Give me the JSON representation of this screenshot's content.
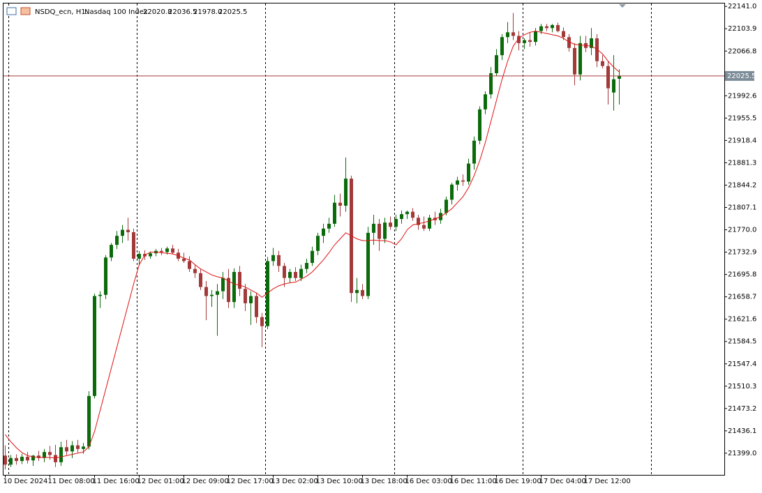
{
  "chart_data": {
    "type": "candlestick",
    "header": {
      "symbol": "NSDQ_ecn, H1:",
      "name": "Nasdaq 100 Index",
      "ohlc_text": [
        "22020.8",
        "22036.5",
        "21978.0",
        "22025.5"
      ]
    },
    "up_color": "#0b6b0b",
    "down_color": "#a33a3a",
    "ylim": [
      21363,
      22147
    ],
    "yticks": [
      {
        "value": 22141,
        "label": "22141.0"
      },
      22103.9,
      22066.8,
      21992.6,
      21955.5,
      21918.4,
      21881.3,
      21844.2,
      21807.1,
      {
        "value": 21770,
        "label": "21770.0"
      },
      21732.9,
      21695.8,
      21658.7,
      21621.6,
      21584.5,
      21547.4,
      21510.3,
      21473.2,
      21436.1,
      {
        "value": 21399,
        "label": "21399.0"
      }
    ],
    "current_price": 22025.5,
    "current_price_color": "#a33a3a",
    "categories": [
      "10 Dec 2024",
      null,
      null,
      null,
      null,
      null,
      null,
      null,
      "11 Dec 08:00",
      null,
      null,
      null,
      null,
      null,
      null,
      null,
      "11 Dec 16:00",
      null,
      null,
      null,
      null,
      null,
      null,
      null,
      "12 Dec 01:00",
      null,
      null,
      null,
      null,
      null,
      null,
      null,
      "12 Dec 09:00",
      null,
      null,
      null,
      null,
      null,
      null,
      null,
      "12 Dec 17:00",
      null,
      null,
      null,
      null,
      null,
      null,
      null,
      "13 Dec 02:00",
      null,
      null,
      null,
      null,
      null,
      null,
      null,
      "13 Dec 10:00",
      null,
      null,
      null,
      null,
      null,
      null,
      null,
      "13 Dec 18:00",
      null,
      null,
      null,
      null,
      null,
      null,
      null,
      "16 Dec 03:00",
      null,
      null,
      null,
      null,
      null,
      null,
      null,
      "16 Dec 11:00",
      null,
      null,
      null,
      null,
      null,
      null,
      null,
      "16 Dec 19:00",
      null,
      null,
      null,
      null,
      null,
      null,
      null,
      "17 Dec 04:00",
      null,
      null,
      null,
      null,
      null,
      null,
      null,
      "17 Dec 12:00",
      null,
      null,
      null,
      null,
      null,
      null
    ],
    "ohlc": [
      [
        21395,
        21412,
        21372,
        21380
      ],
      [
        21380,
        21396,
        21376,
        21391
      ],
      [
        21391,
        21397,
        21380,
        21386
      ],
      [
        21386,
        21398,
        21381,
        21393
      ],
      [
        21393,
        21401,
        21382,
        21387
      ],
      [
        21387,
        21396,
        21378,
        21395
      ],
      [
        21395,
        21403,
        21386,
        21391
      ],
      [
        21391,
        21406,
        21384,
        21401
      ],
      [
        21401,
        21411,
        21388,
        21396
      ],
      [
        21396,
        21413,
        21376,
        21384
      ],
      [
        21384,
        21418,
        21378,
        21409
      ],
      [
        21409,
        21421,
        21396,
        21402
      ],
      [
        21402,
        21419,
        21391,
        21412
      ],
      [
        21412,
        21421,
        21400,
        21406
      ],
      [
        21406,
        21416,
        21398,
        21410
      ],
      [
        21410,
        21502,
        21405,
        21494
      ],
      [
        21494,
        21664,
        21490,
        21660
      ],
      [
        21660,
        21668,
        21640,
        21662
      ],
      [
        21662,
        21728,
        21655,
        21724
      ],
      [
        21724,
        21748,
        21718,
        21745
      ],
      [
        21745,
        21768,
        21738,
        21760
      ],
      [
        21760,
        21778,
        21748,
        21770
      ],
      [
        21770,
        21790,
        21752,
        21766
      ],
      [
        21766,
        21772,
        21718,
        21722
      ],
      [
        21722,
        21735,
        21712,
        21730
      ],
      [
        21730,
        21736,
        21720,
        21726
      ],
      [
        21726,
        21734,
        21722,
        21731
      ],
      [
        21731,
        21738,
        21726,
        21735
      ],
      [
        21735,
        21740,
        21728,
        21733
      ],
      [
        21733,
        21742,
        21729,
        21739
      ],
      [
        21739,
        21745,
        21730,
        21732
      ],
      [
        21732,
        21738,
        21718,
        21722
      ],
      [
        21722,
        21732,
        21715,
        21718
      ],
      [
        21718,
        21726,
        21700,
        21705
      ],
      [
        21705,
        21712,
        21690,
        21698
      ],
      [
        21698,
        21704,
        21670,
        21675
      ],
      [
        21675,
        21685,
        21620,
        21660
      ],
      [
        21660,
        21670,
        21642,
        21662
      ],
      [
        21662,
        21680,
        21594,
        21668
      ],
      [
        21668,
        21700,
        21655,
        21690
      ],
      [
        21690,
        21705,
        21640,
        21650
      ],
      [
        21650,
        21706,
        21640,
        21700
      ],
      [
        21700,
        21710,
        21660,
        21672
      ],
      [
        21672,
        21680,
        21635,
        21648
      ],
      [
        21648,
        21668,
        21612,
        21660
      ],
      [
        21660,
        21665,
        21615,
        21625
      ],
      [
        21625,
        21632,
        21575,
        21610
      ],
      [
        21610,
        21725,
        21605,
        21718
      ],
      [
        21718,
        21740,
        21710,
        21728
      ],
      [
        21728,
        21735,
        21700,
        21710
      ],
      [
        21710,
        21715,
        21675,
        21690
      ],
      [
        21690,
        21705,
        21682,
        21700
      ],
      [
        21700,
        21708,
        21685,
        21690
      ],
      [
        21690,
        21712,
        21685,
        21705
      ],
      [
        21705,
        21722,
        21698,
        21715
      ],
      [
        21715,
        21742,
        21710,
        21735
      ],
      [
        21735,
        21765,
        21728,
        21760
      ],
      [
        21760,
        21780,
        21748,
        21772
      ],
      [
        21772,
        21790,
        21765,
        21780
      ],
      [
        21780,
        21828,
        21775,
        21815
      ],
      [
        21815,
        21830,
        21792,
        21810
      ],
      [
        21810,
        21890,
        21800,
        21855
      ],
      [
        21855,
        21860,
        21650,
        21665
      ],
      [
        21665,
        21690,
        21648,
        21670
      ],
      [
        21670,
        21680,
        21655,
        21660
      ],
      [
        21660,
        21775,
        21655,
        21765
      ],
      [
        21765,
        21795,
        21745,
        21780
      ],
      [
        21780,
        21788,
        21735,
        21755
      ],
      [
        21755,
        21790,
        21748,
        21782
      ],
      [
        21782,
        21792,
        21770,
        21775
      ],
      [
        21775,
        21795,
        21768,
        21788
      ],
      [
        21788,
        21802,
        21780,
        21796
      ],
      [
        21796,
        21802,
        21788,
        21800
      ],
      [
        21800,
        21806,
        21785,
        21790
      ],
      [
        21790,
        21795,
        21770,
        21778
      ],
      [
        21778,
        21792,
        21768,
        21772
      ],
      [
        21772,
        21795,
        21768,
        21790
      ],
      [
        21790,
        21800,
        21778,
        21786
      ],
      [
        21786,
        21805,
        21780,
        21798
      ],
      [
        21798,
        21825,
        21794,
        21820
      ],
      [
        21820,
        21848,
        21812,
        21845
      ],
      [
        21845,
        21858,
        21835,
        21852
      ],
      [
        21852,
        21862,
        21843,
        21850
      ],
      [
        21850,
        21888,
        21845,
        21880
      ],
      [
        21880,
        21925,
        21870,
        21918
      ],
      [
        21918,
        21975,
        21912,
        21970
      ],
      [
        21970,
        22000,
        21962,
        21995
      ],
      [
        21995,
        22040,
        21988,
        22030
      ],
      [
        22030,
        22070,
        22025,
        22060
      ],
      [
        22060,
        22095,
        22052,
        22090
      ],
      [
        22090,
        22115,
        22080,
        22098
      ],
      [
        22098,
        22130,
        22085,
        22092
      ],
      [
        22092,
        22100,
        22068,
        22080
      ],
      [
        22080,
        22088,
        22070,
        22085
      ],
      [
        22085,
        22098,
        22074,
        22082
      ],
      [
        22082,
        22105,
        22076,
        22100
      ],
      [
        22100,
        22112,
        22095,
        22108
      ],
      [
        22108,
        22112,
        22100,
        22105
      ],
      [
        22105,
        22112,
        22098,
        22110
      ],
      [
        22110,
        22114,
        22098,
        22100
      ],
      [
        22100,
        22106,
        22085,
        22090
      ],
      [
        22090,
        22095,
        22066,
        22072
      ],
      [
        22072,
        22080,
        22010,
        22028
      ],
      [
        22028,
        22092,
        22018,
        22080
      ],
      [
        22080,
        22092,
        22065,
        22072
      ],
      [
        22072,
        22105,
        22060,
        22088
      ],
      [
        22088,
        22095,
        22040,
        22050
      ],
      [
        22050,
        22060,
        22038,
        22042
      ],
      [
        22042,
        22050,
        21978,
        22005
      ],
      [
        21998,
        22060,
        21968,
        22020
      ],
      [
        22020.8,
        22036.5,
        21978.0,
        22025.5
      ]
    ],
    "ma": {
      "color": "#e01010",
      "values": [
        21430,
        21418,
        21408,
        21400,
        21395,
        21393,
        21392,
        21392,
        21392,
        21391,
        21393,
        21395,
        21397,
        21399,
        21401,
        21410,
        21435,
        21470,
        21505,
        21540,
        21575,
        21610,
        21645,
        21680,
        21712,
        21728,
        21733,
        21733,
        21732,
        21731,
        21730,
        21727,
        21723,
        21720,
        21712,
        21705,
        21700,
        21695,
        21692,
        21690,
        21685,
        21680,
        21678,
        21675,
        21670,
        21665,
        21658,
        21665,
        21672,
        21677,
        21680,
        21682,
        21683,
        21688,
        21693,
        21700,
        21710,
        21720,
        21732,
        21745,
        21755,
        21765,
        21760,
        21755,
        21752,
        21752,
        21753,
        21752,
        21752,
        21750,
        21745,
        21755,
        21770,
        21778,
        21780,
        21782,
        21785,
        21788,
        21792,
        21798,
        21805,
        21815,
        21825,
        21840,
        21860,
        21885,
        21915,
        21950,
        21985,
        22020,
        22050,
        22075,
        22088,
        22094,
        22098,
        22100,
        22098,
        22096,
        22094,
        22092,
        22088,
        22082,
        22078,
        22077,
        22076,
        22075,
        22070,
        22062,
        22050,
        22040,
        22032
      ]
    }
  }
}
